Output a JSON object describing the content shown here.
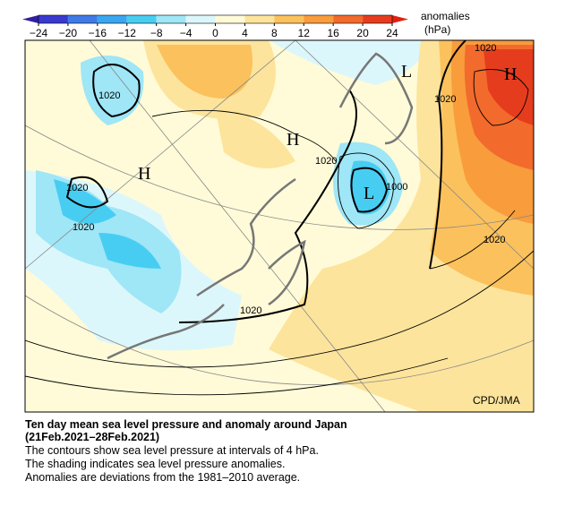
{
  "colorbar": {
    "ticks": [
      {
        "value": -24,
        "label": "−24"
      },
      {
        "value": -20,
        "label": "−20"
      },
      {
        "value": -16,
        "label": "−16"
      },
      {
        "value": -12,
        "label": "−12"
      },
      {
        "value": -8,
        "label": "−8"
      },
      {
        "value": -4,
        "label": "−4"
      },
      0,
      4,
      8,
      12,
      16,
      20,
      24
    ],
    "colors": [
      "#3a3ad0",
      "#3f7ae6",
      "#3aa6f0",
      "#48cdf2",
      "#9fe6f7",
      "#dcf7fb",
      "#fffbd8",
      "#fde49c",
      "#fbc15c",
      "#f89c3c",
      "#f26a2c",
      "#e63c1e"
    ],
    "label": "anomalies",
    "unit": "(hPa)"
  },
  "map": {
    "contour_labels": [
      "1020",
      "1020",
      "1020",
      "1020",
      "1020",
      "1020",
      "1020",
      "1020",
      "1000"
    ],
    "centers": [
      "H",
      "H",
      "H",
      "L",
      "L"
    ],
    "credit": "CPD/JMA"
  },
  "caption": {
    "title": "Ten day mean sea level pressure and anomaly around Japan",
    "period": "(21Feb.2021–28Feb.2021)",
    "lines": [
      "The contours show sea level pressure at intervals of 4 hPa.",
      "The shading indicates sea level pressure anomalies.",
      "Anomalies are deviations from the 1981–2010 average."
    ]
  }
}
